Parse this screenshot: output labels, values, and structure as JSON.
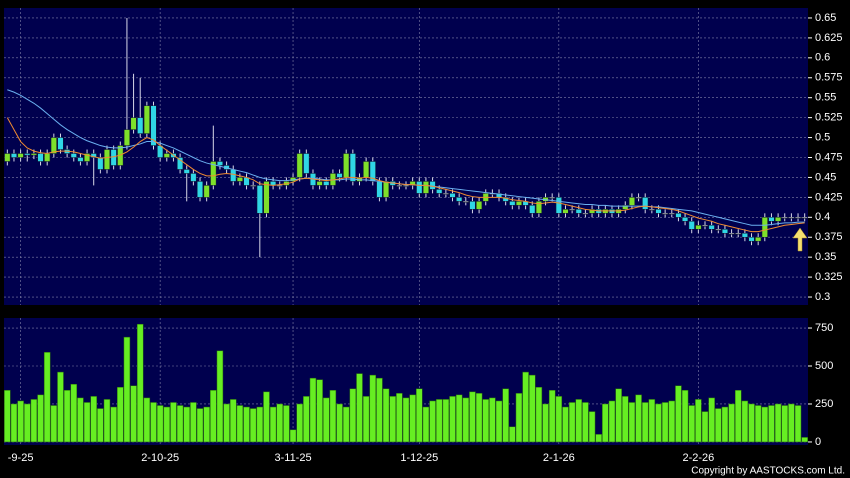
{
  "chart_data": [
    {
      "type": "candlestick",
      "up_color": "#7ee02a",
      "down_color": "#2fd6e6",
      "background": "#00004e",
      "grid": true,
      "ylim": [
        0.29,
        0.6625
      ],
      "yticks": [
        0.3,
        0.325,
        0.35,
        0.375,
        0.4,
        0.425,
        0.45,
        0.475,
        0.5,
        0.525,
        0.55,
        0.575,
        0.6,
        0.625,
        0.65
      ],
      "open": [
        0.47,
        0.48,
        0.475,
        0.48,
        0.478,
        0.48,
        0.47,
        0.48,
        0.5,
        0.485,
        0.48,
        0.475,
        0.47,
        0.48,
        0.475,
        0.46,
        0.485,
        0.465,
        0.49,
        0.51,
        0.525,
        0.505,
        0.54,
        0.49,
        0.475,
        0.48,
        0.475,
        0.46,
        0.455,
        0.445,
        0.425,
        0.44,
        0.47,
        0.465,
        0.46,
        0.445,
        0.45,
        0.44,
        0.44,
        0.405,
        0.445,
        0.44,
        0.44,
        0.445,
        0.45,
        0.48,
        0.455,
        0.44,
        0.445,
        0.44,
        0.455,
        0.45,
        0.48,
        0.445,
        0.45,
        0.47,
        0.445,
        0.425,
        0.445,
        0.44,
        0.44,
        0.44,
        0.445,
        0.43,
        0.445,
        0.435,
        0.43,
        0.43,
        0.425,
        0.42,
        0.42,
        0.41,
        0.42,
        0.43,
        0.43,
        0.425,
        0.42,
        0.415,
        0.42,
        0.415,
        0.405,
        0.42,
        0.425,
        0.425,
        0.405,
        0.41,
        0.41,
        0.405,
        0.405,
        0.41,
        0.405,
        0.41,
        0.405,
        0.41,
        0.415,
        0.425,
        0.425,
        0.41,
        0.41,
        0.405,
        0.405,
        0.405,
        0.4,
        0.395,
        0.385,
        0.39,
        0.39,
        0.385,
        0.385,
        0.38,
        0.38,
        0.38,
        0.375,
        0.37,
        0.375,
        0.4,
        0.395,
        0.4,
        0.4,
        0.4,
        0.4
      ],
      "high": [
        0.485,
        0.485,
        0.485,
        0.485,
        0.485,
        0.485,
        0.485,
        0.505,
        0.505,
        0.49,
        0.485,
        0.48,
        0.485,
        0.485,
        0.48,
        0.49,
        0.49,
        0.495,
        0.65,
        0.58,
        0.575,
        0.545,
        0.545,
        0.495,
        0.485,
        0.485,
        0.48,
        0.465,
        0.46,
        0.45,
        0.445,
        0.515,
        0.475,
        0.47,
        0.465,
        0.455,
        0.455,
        0.445,
        0.445,
        0.45,
        0.45,
        0.445,
        0.45,
        0.455,
        0.485,
        0.485,
        0.46,
        0.45,
        0.45,
        0.46,
        0.46,
        0.485,
        0.485,
        0.455,
        0.475,
        0.475,
        0.45,
        0.45,
        0.45,
        0.445,
        0.445,
        0.45,
        0.45,
        0.45,
        0.45,
        0.44,
        0.435,
        0.435,
        0.43,
        0.425,
        0.425,
        0.425,
        0.435,
        0.435,
        0.435,
        0.43,
        0.425,
        0.425,
        0.425,
        0.42,
        0.425,
        0.43,
        0.43,
        0.43,
        0.415,
        0.415,
        0.415,
        0.41,
        0.415,
        0.415,
        0.415,
        0.415,
        0.415,
        0.42,
        0.43,
        0.43,
        0.43,
        0.415,
        0.415,
        0.41,
        0.41,
        0.41,
        0.405,
        0.4,
        0.395,
        0.395,
        0.395,
        0.39,
        0.39,
        0.385,
        0.385,
        0.385,
        0.38,
        0.38,
        0.405,
        0.405,
        0.405,
        0.405,
        0.405,
        0.405,
        0.405
      ],
      "low": [
        0.465,
        0.47,
        0.47,
        0.47,
        0.473,
        0.465,
        0.465,
        0.475,
        0.48,
        0.475,
        0.47,
        0.465,
        0.465,
        0.44,
        0.455,
        0.455,
        0.46,
        0.46,
        0.485,
        0.505,
        0.5,
        0.5,
        0.485,
        0.47,
        0.47,
        0.47,
        0.455,
        0.42,
        0.44,
        0.42,
        0.42,
        0.435,
        0.46,
        0.455,
        0.44,
        0.44,
        0.435,
        0.435,
        0.35,
        0.4,
        0.435,
        0.435,
        0.435,
        0.44,
        0.445,
        0.45,
        0.435,
        0.435,
        0.435,
        0.435,
        0.445,
        0.445,
        0.44,
        0.44,
        0.445,
        0.44,
        0.42,
        0.42,
        0.435,
        0.435,
        0.435,
        0.435,
        0.425,
        0.425,
        0.43,
        0.425,
        0.425,
        0.42,
        0.415,
        0.415,
        0.405,
        0.405,
        0.415,
        0.425,
        0.42,
        0.415,
        0.41,
        0.41,
        0.41,
        0.4,
        0.4,
        0.415,
        0.42,
        0.4,
        0.4,
        0.405,
        0.4,
        0.4,
        0.4,
        0.4,
        0.4,
        0.4,
        0.4,
        0.405,
        0.41,
        0.42,
        0.405,
        0.405,
        0.4,
        0.4,
        0.4,
        0.395,
        0.39,
        0.38,
        0.38,
        0.385,
        0.38,
        0.38,
        0.375,
        0.375,
        0.375,
        0.37,
        0.365,
        0.365,
        0.37,
        0.39,
        0.39,
        0.395,
        0.395,
        0.395,
        0.395
      ],
      "close": [
        0.48,
        0.475,
        0.48,
        0.478,
        0.48,
        0.47,
        0.48,
        0.5,
        0.485,
        0.48,
        0.475,
        0.47,
        0.48,
        0.475,
        0.46,
        0.485,
        0.465,
        0.49,
        0.51,
        0.525,
        0.505,
        0.54,
        0.49,
        0.475,
        0.48,
        0.475,
        0.46,
        0.455,
        0.445,
        0.425,
        0.44,
        0.47,
        0.465,
        0.46,
        0.445,
        0.45,
        0.44,
        0.44,
        0.405,
        0.445,
        0.44,
        0.44,
        0.445,
        0.45,
        0.48,
        0.455,
        0.44,
        0.445,
        0.44,
        0.455,
        0.45,
        0.48,
        0.445,
        0.45,
        0.47,
        0.445,
        0.425,
        0.445,
        0.44,
        0.44,
        0.44,
        0.445,
        0.43,
        0.445,
        0.435,
        0.43,
        0.43,
        0.425,
        0.42,
        0.42,
        0.41,
        0.42,
        0.43,
        0.43,
        0.425,
        0.42,
        0.415,
        0.42,
        0.415,
        0.405,
        0.42,
        0.425,
        0.425,
        0.405,
        0.41,
        0.41,
        0.405,
        0.405,
        0.41,
        0.405,
        0.41,
        0.405,
        0.41,
        0.415,
        0.425,
        0.425,
        0.41,
        0.41,
        0.405,
        0.405,
        0.405,
        0.4,
        0.395,
        0.385,
        0.39,
        0.39,
        0.385,
        0.385,
        0.38,
        0.38,
        0.38,
        0.375,
        0.37,
        0.375,
        0.4,
        0.395,
        0.4,
        0.4,
        0.4,
        0.4,
        0.4
      ],
      "lines": [
        {
          "color": "#6ab0f0",
          "values": [
            0.56,
            0.557,
            0.553,
            0.548,
            0.543,
            0.537,
            0.53,
            0.523,
            0.516,
            0.51,
            0.505,
            0.5,
            0.496,
            0.493,
            0.49,
            0.488,
            0.487,
            0.487,
            0.488,
            0.49,
            0.492,
            0.495,
            0.495,
            0.493,
            0.49,
            0.487,
            0.483,
            0.479,
            0.475,
            0.471,
            0.468,
            0.466,
            0.464,
            0.462,
            0.46,
            0.458,
            0.456,
            0.453,
            0.45,
            0.448,
            0.447,
            0.446,
            0.446,
            0.447,
            0.448,
            0.449,
            0.449,
            0.448,
            0.447,
            0.447,
            0.447,
            0.448,
            0.448,
            0.447,
            0.447,
            0.446,
            0.445,
            0.444,
            0.443,
            0.442,
            0.441,
            0.441,
            0.44,
            0.44,
            0.439,
            0.438,
            0.437,
            0.436,
            0.435,
            0.434,
            0.433,
            0.432,
            0.431,
            0.43,
            0.429,
            0.428,
            0.427,
            0.426,
            0.425,
            0.424,
            0.423,
            0.422,
            0.421,
            0.42,
            0.419,
            0.418,
            0.417,
            0.416,
            0.416,
            0.415,
            0.415,
            0.414,
            0.414,
            0.414,
            0.414,
            0.414,
            0.414,
            0.413,
            0.413,
            0.412,
            0.411,
            0.41,
            0.409,
            0.408,
            0.406,
            0.404,
            0.402,
            0.4,
            0.398,
            0.396,
            0.394,
            0.392,
            0.39,
            0.39,
            0.39,
            0.391,
            0.392,
            0.393,
            0.393,
            0.394,
            0.394
          ]
        },
        {
          "color": "#f08a30",
          "values": [
            0.525,
            0.51,
            0.495,
            0.487,
            0.483,
            0.481,
            0.48,
            0.482,
            0.483,
            0.483,
            0.482,
            0.48,
            0.478,
            0.476,
            0.474,
            0.475,
            0.476,
            0.478,
            0.482,
            0.488,
            0.495,
            0.5,
            0.497,
            0.49,
            0.484,
            0.478,
            0.472,
            0.466,
            0.46,
            0.455,
            0.452,
            0.452,
            0.454,
            0.455,
            0.454,
            0.452,
            0.45,
            0.447,
            0.442,
            0.441,
            0.44,
            0.441,
            0.442,
            0.444,
            0.448,
            0.449,
            0.448,
            0.447,
            0.446,
            0.447,
            0.448,
            0.45,
            0.45,
            0.449,
            0.45,
            0.449,
            0.446,
            0.444,
            0.443,
            0.442,
            0.441,
            0.441,
            0.44,
            0.44,
            0.439,
            0.437,
            0.435,
            0.433,
            0.431,
            0.428,
            0.426,
            0.425,
            0.425,
            0.425,
            0.425,
            0.424,
            0.422,
            0.421,
            0.42,
            0.418,
            0.417,
            0.418,
            0.419,
            0.418,
            0.416,
            0.414,
            0.412,
            0.41,
            0.409,
            0.408,
            0.408,
            0.408,
            0.408,
            0.409,
            0.411,
            0.413,
            0.414,
            0.413,
            0.412,
            0.411,
            0.41,
            0.408,
            0.405,
            0.402,
            0.399,
            0.397,
            0.395,
            0.392,
            0.39,
            0.388,
            0.386,
            0.384,
            0.382,
            0.382,
            0.384,
            0.386,
            0.388,
            0.39,
            0.391,
            0.392,
            0.393
          ]
        }
      ]
    },
    {
      "type": "bar",
      "color": "#66ee22",
      "background": "#00004e",
      "grid": true,
      "ylim": [
        -20,
        816
      ],
      "yticks": [
        0,
        250,
        500,
        750
      ],
      "categories": [
        null,
        null,
        "-9-25",
        null,
        null,
        null,
        null,
        null,
        null,
        null,
        null,
        null,
        null,
        null,
        null,
        null,
        null,
        null,
        null,
        null,
        null,
        null,
        null,
        "2-10-25",
        null,
        null,
        null,
        null,
        null,
        null,
        null,
        null,
        null,
        null,
        null,
        null,
        null,
        null,
        null,
        null,
        null,
        null,
        null,
        "3-11-25",
        null,
        null,
        null,
        null,
        null,
        null,
        null,
        null,
        null,
        null,
        null,
        null,
        null,
        null,
        null,
        null,
        null,
        null,
        "1-12-25",
        null,
        null,
        null,
        null,
        null,
        null,
        null,
        null,
        null,
        null,
        null,
        null,
        null,
        null,
        null,
        null,
        null,
        null,
        null,
        null,
        "2-1-26",
        null,
        null,
        null,
        null,
        null,
        null,
        null,
        null,
        null,
        null,
        null,
        null,
        null,
        null,
        null,
        null,
        null,
        null,
        null,
        null,
        "2-2-26",
        null,
        null,
        null,
        null,
        null,
        null,
        null,
        null,
        null,
        null,
        null,
        null,
        null,
        null,
        null,
        null
      ],
      "values": [
        340,
        250,
        270,
        250,
        280,
        310,
        590,
        240,
        460,
        340,
        380,
        290,
        260,
        300,
        220,
        280,
        230,
        360,
        690,
        370,
        775,
        290,
        260,
        240,
        230,
        260,
        240,
        230,
        260,
        220,
        230,
        340,
        600,
        250,
        280,
        240,
        230,
        220,
        230,
        330,
        230,
        250,
        240,
        80,
        250,
        300,
        420,
        410,
        290,
        340,
        250,
        230,
        350,
        450,
        300,
        440,
        420,
        350,
        300,
        320,
        290,
        310,
        350,
        230,
        270,
        280,
        280,
        300,
        310,
        290,
        330,
        320,
        280,
        290,
        270,
        350,
        100,
        320,
        460,
        440,
        360,
        250,
        340,
        300,
        230,
        260,
        280,
        260,
        200,
        50,
        250,
        270,
        350,
        300,
        260,
        310,
        260,
        280,
        250,
        260,
        270,
        370,
        340,
        240,
        280,
        200,
        290,
        220,
        230,
        250,
        340,
        270,
        250,
        240,
        230,
        240,
        250,
        240,
        250,
        240,
        30
      ]
    }
  ],
  "footer": "Copyright by AASTOCKS.com Ltd."
}
